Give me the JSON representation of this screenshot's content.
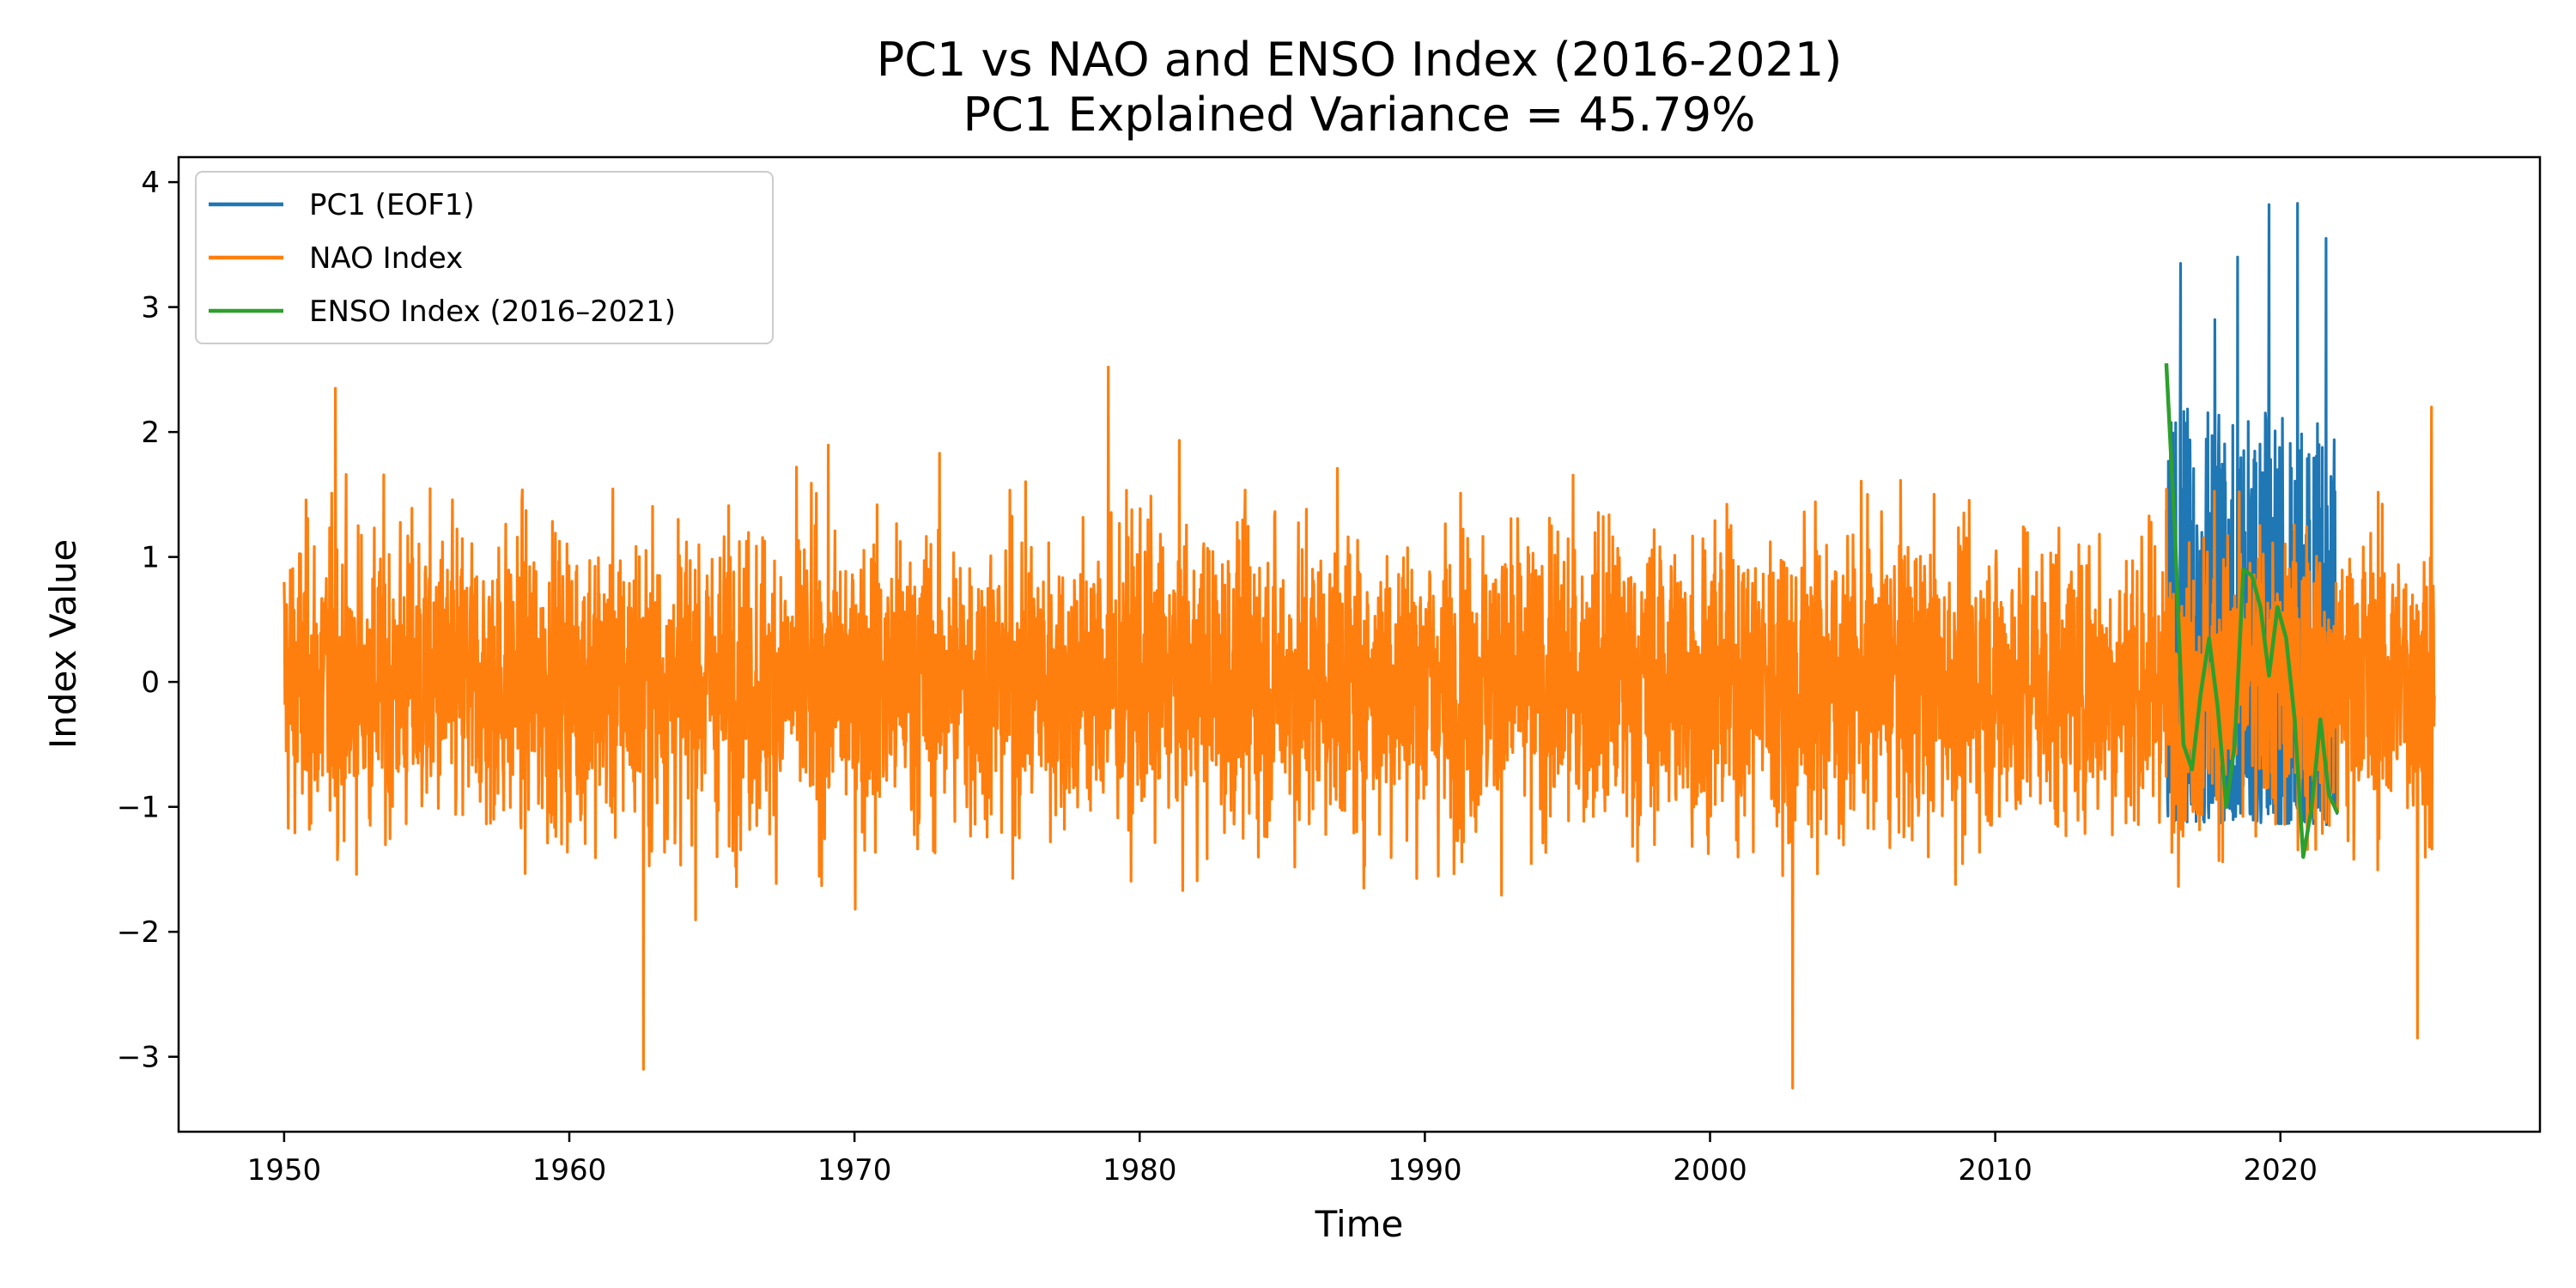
{
  "chart_data": {
    "type": "line",
    "title": "PC1 vs NAO and ENSO Index (2016-2021)",
    "subtitle": "PC1 Explained Variance = 45.79%",
    "xlabel": "Time",
    "ylabel": "Index Value",
    "xlim": [
      1946.3,
      2029.1
    ],
    "ylim": [
      -3.6,
      4.2
    ],
    "x_ticks": [
      1950,
      1960,
      1970,
      1980,
      1990,
      2000,
      2010,
      2020
    ],
    "x_tick_labels": [
      "1950",
      "1960",
      "1970",
      "1980",
      "1990",
      "2000",
      "2010",
      "2020"
    ],
    "y_ticks": [
      -3,
      -2,
      -1,
      0,
      1,
      2,
      3,
      4
    ],
    "y_tick_labels": [
      "−3",
      "−2",
      "−1",
      "0",
      "1",
      "2",
      "3",
      "4"
    ],
    "grid": false,
    "legend_position": "top-left",
    "series": [
      {
        "name": "PC1 (EOF1)",
        "color": "#1f77b4",
        "x_range": [
          2016.0,
          2022.0
        ],
        "approx_range": [
          -1.2,
          3.85
        ],
        "peaks": [
          {
            "x": 2016.5,
            "y": 3.35
          },
          {
            "x": 2017.7,
            "y": 2.9
          },
          {
            "x": 2018.5,
            "y": 3.4
          },
          {
            "x": 2019.6,
            "y": 3.82
          },
          {
            "x": 2020.6,
            "y": 3.83
          },
          {
            "x": 2021.6,
            "y": 3.55
          }
        ]
      },
      {
        "name": "NAO Index",
        "color": "#ff7f0e",
        "x_range": [
          1950.0,
          2025.4
        ],
        "approx_range": [
          -3.25,
          2.55
        ],
        "extremes": [
          {
            "x": 1951.8,
            "y": 2.35
          },
          {
            "x": 1962.6,
            "y": -3.1
          },
          {
            "x": 1978.9,
            "y": 2.52
          },
          {
            "x": 2002.9,
            "y": -3.25
          },
          {
            "x": 2024.8,
            "y": -2.85
          },
          {
            "x": 2025.3,
            "y": 2.2
          }
        ]
      },
      {
        "name": "ENSO Index (2016–2021)",
        "color": "#2ca02c",
        "x": [
          2016.0,
          2016.3,
          2016.6,
          2016.9,
          2017.2,
          2017.5,
          2017.8,
          2018.1,
          2018.4,
          2018.7,
          2019.0,
          2019.3,
          2019.6,
          2019.9,
          2020.2,
          2020.5,
          2020.8,
          2021.1,
          2021.4,
          2021.7,
          2022.0
        ],
        "values": [
          2.55,
          1.2,
          -0.5,
          -0.7,
          -0.1,
          0.35,
          -0.2,
          -1.0,
          -0.5,
          0.9,
          0.85,
          0.6,
          0.05,
          0.6,
          0.35,
          -0.3,
          -1.4,
          -1.0,
          -0.3,
          -0.9,
          -1.05
        ]
      }
    ]
  }
}
